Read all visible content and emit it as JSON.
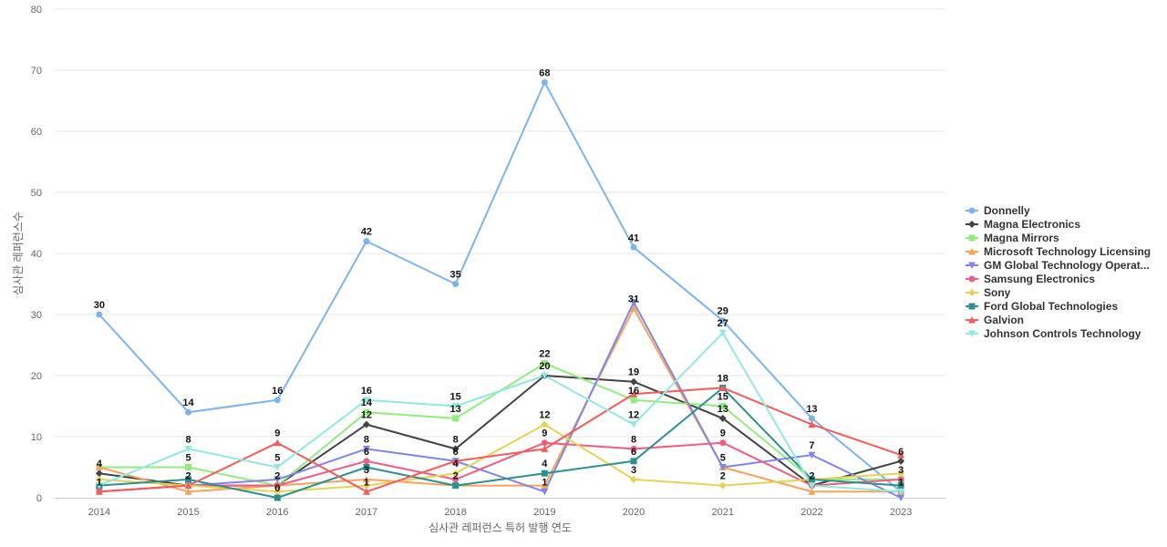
{
  "chart_data": {
    "type": "line",
    "xlabel": "심사관 레퍼런스 특허 발행 연도",
    "ylabel": "심사관 레퍼런스수",
    "ylim": [
      0,
      80
    ],
    "yticks": [
      0,
      10,
      20,
      30,
      40,
      50,
      60,
      70,
      80
    ],
    "categories": [
      "2014",
      "2015",
      "2016",
      "2017",
      "2018",
      "2019",
      "2020",
      "2021",
      "2022",
      "2023"
    ],
    "grid": "horizontal",
    "legend_position": "right",
    "series": [
      {
        "name": "Donnelly",
        "color": "#7cb5ec",
        "marker": "circle",
        "values": [
          30,
          14,
          16,
          42,
          35,
          68,
          41,
          29,
          13,
          1
        ]
      },
      {
        "name": "Magna Electronics",
        "color": "#434348",
        "marker": "diamond",
        "values": [
          4,
          2,
          2,
          12,
          8,
          20,
          19,
          13,
          2,
          6
        ]
      },
      {
        "name": "Magna Mirrors",
        "color": "#90ed7d",
        "marker": "square",
        "values": [
          5,
          5,
          2,
          14,
          13,
          22,
          16,
          15,
          3,
          3
        ]
      },
      {
        "name": "Microsoft Technology Licensing",
        "color": "#f7a35c",
        "marker": "triangle",
        "values": [
          5,
          1,
          2,
          3,
          2,
          2,
          31,
          5,
          1,
          1
        ]
      },
      {
        "name": "GM Global Technology Operat...",
        "color": "#8085e9",
        "marker": "triangle-down",
        "values": [
          1,
          2,
          3,
          8,
          6,
          1,
          32,
          5,
          7,
          0
        ]
      },
      {
        "name": "Samsung Electronics",
        "color": "#f15c80",
        "marker": "circle",
        "values": [
          1,
          2,
          2,
          6,
          3,
          9,
          8,
          9,
          2,
          3
        ]
      },
      {
        "name": "Sony",
        "color": "#e4d354",
        "marker": "diamond",
        "values": [
          3,
          2,
          1,
          2,
          4,
          12,
          3,
          2,
          3,
          4
        ]
      },
      {
        "name": "Ford Global Technologies",
        "color": "#2b908f",
        "marker": "square",
        "values": [
          2,
          3,
          0,
          5,
          2,
          4,
          6,
          18,
          3,
          2
        ]
      },
      {
        "name": "Galvion",
        "color": "#f45b5b",
        "marker": "triangle",
        "values": [
          1,
          2,
          9,
          1,
          6,
          8,
          17,
          18,
          12,
          7
        ]
      },
      {
        "name": "Johnson Controls Technology",
        "color": "#91e8e1",
        "marker": "triangle-down",
        "values": [
          2,
          8,
          5,
          16,
          15,
          20,
          12,
          27,
          2,
          1
        ]
      }
    ],
    "data_labels": [
      {
        "x": "2014",
        "text": "30",
        "y": 30
      },
      {
        "x": "2014",
        "text": "4",
        "y": 4
      },
      {
        "x": "2014",
        "text": "1",
        "y": 1
      },
      {
        "x": "2015",
        "text": "14",
        "y": 14
      },
      {
        "x": "2015",
        "text": "8",
        "y": 8
      },
      {
        "x": "2015",
        "text": "5",
        "y": 5
      },
      {
        "x": "2015",
        "text": "2",
        "y": 2
      },
      {
        "x": "2016",
        "text": "16",
        "y": 16
      },
      {
        "x": "2016",
        "text": "9",
        "y": 9
      },
      {
        "x": "2016",
        "text": "5",
        "y": 5
      },
      {
        "x": "2016",
        "text": "2",
        "y": 2
      },
      {
        "x": "2016",
        "text": "0",
        "y": 0
      },
      {
        "x": "2017",
        "text": "42",
        "y": 42
      },
      {
        "x": "2017",
        "text": "16",
        "y": 16
      },
      {
        "x": "2017",
        "text": "14",
        "y": 14
      },
      {
        "x": "2017",
        "text": "12",
        "y": 12
      },
      {
        "x": "2017",
        "text": "8",
        "y": 8
      },
      {
        "x": "2017",
        "text": "6",
        "y": 6
      },
      {
        "x": "2017",
        "text": "3",
        "y": 3
      },
      {
        "x": "2017",
        "text": "1",
        "y": 1
      },
      {
        "x": "2018",
        "text": "35",
        "y": 35
      },
      {
        "x": "2018",
        "text": "15",
        "y": 15
      },
      {
        "x": "2018",
        "text": "13",
        "y": 13
      },
      {
        "x": "2018",
        "text": "8",
        "y": 8
      },
      {
        "x": "2018",
        "text": "6",
        "y": 6
      },
      {
        "x": "2018",
        "text": "4",
        "y": 4
      },
      {
        "x": "2018",
        "text": "2",
        "y": 2
      },
      {
        "x": "2019",
        "text": "68",
        "y": 68
      },
      {
        "x": "2019",
        "text": "22",
        "y": 22
      },
      {
        "x": "2019",
        "text": "20",
        "y": 20
      },
      {
        "x": "2019",
        "text": "12",
        "y": 12
      },
      {
        "x": "2019",
        "text": "9",
        "y": 9
      },
      {
        "x": "2019",
        "text": "4",
        "y": 4
      },
      {
        "x": "2019",
        "text": "1",
        "y": 1
      },
      {
        "x": "2020",
        "text": "41",
        "y": 41
      },
      {
        "x": "2020",
        "text": "31",
        "y": 31
      },
      {
        "x": "2020",
        "text": "19",
        "y": 19
      },
      {
        "x": "2020",
        "text": "16",
        "y": 16
      },
      {
        "x": "2020",
        "text": "12",
        "y": 12
      },
      {
        "x": "2020",
        "text": "8",
        "y": 8
      },
      {
        "x": "2020",
        "text": "6",
        "y": 6
      },
      {
        "x": "2020",
        "text": "3",
        "y": 3
      },
      {
        "x": "2021",
        "text": "29",
        "y": 29
      },
      {
        "x": "2021",
        "text": "27",
        "y": 27
      },
      {
        "x": "2021",
        "text": "18",
        "y": 18
      },
      {
        "x": "2021",
        "text": "15",
        "y": 15
      },
      {
        "x": "2021",
        "text": "13",
        "y": 13
      },
      {
        "x": "2021",
        "text": "9",
        "y": 9
      },
      {
        "x": "2021",
        "text": "5",
        "y": 5
      },
      {
        "x": "2021",
        "text": "2",
        "y": 2
      },
      {
        "x": "2022",
        "text": "13",
        "y": 13
      },
      {
        "x": "2022",
        "text": "7",
        "y": 7
      },
      {
        "x": "2022",
        "text": "2",
        "y": 2
      },
      {
        "x": "2023",
        "text": "6",
        "y": 6
      },
      {
        "x": "2023",
        "text": "3",
        "y": 3
      },
      {
        "x": "2023",
        "text": "1",
        "y": 1
      }
    ]
  }
}
